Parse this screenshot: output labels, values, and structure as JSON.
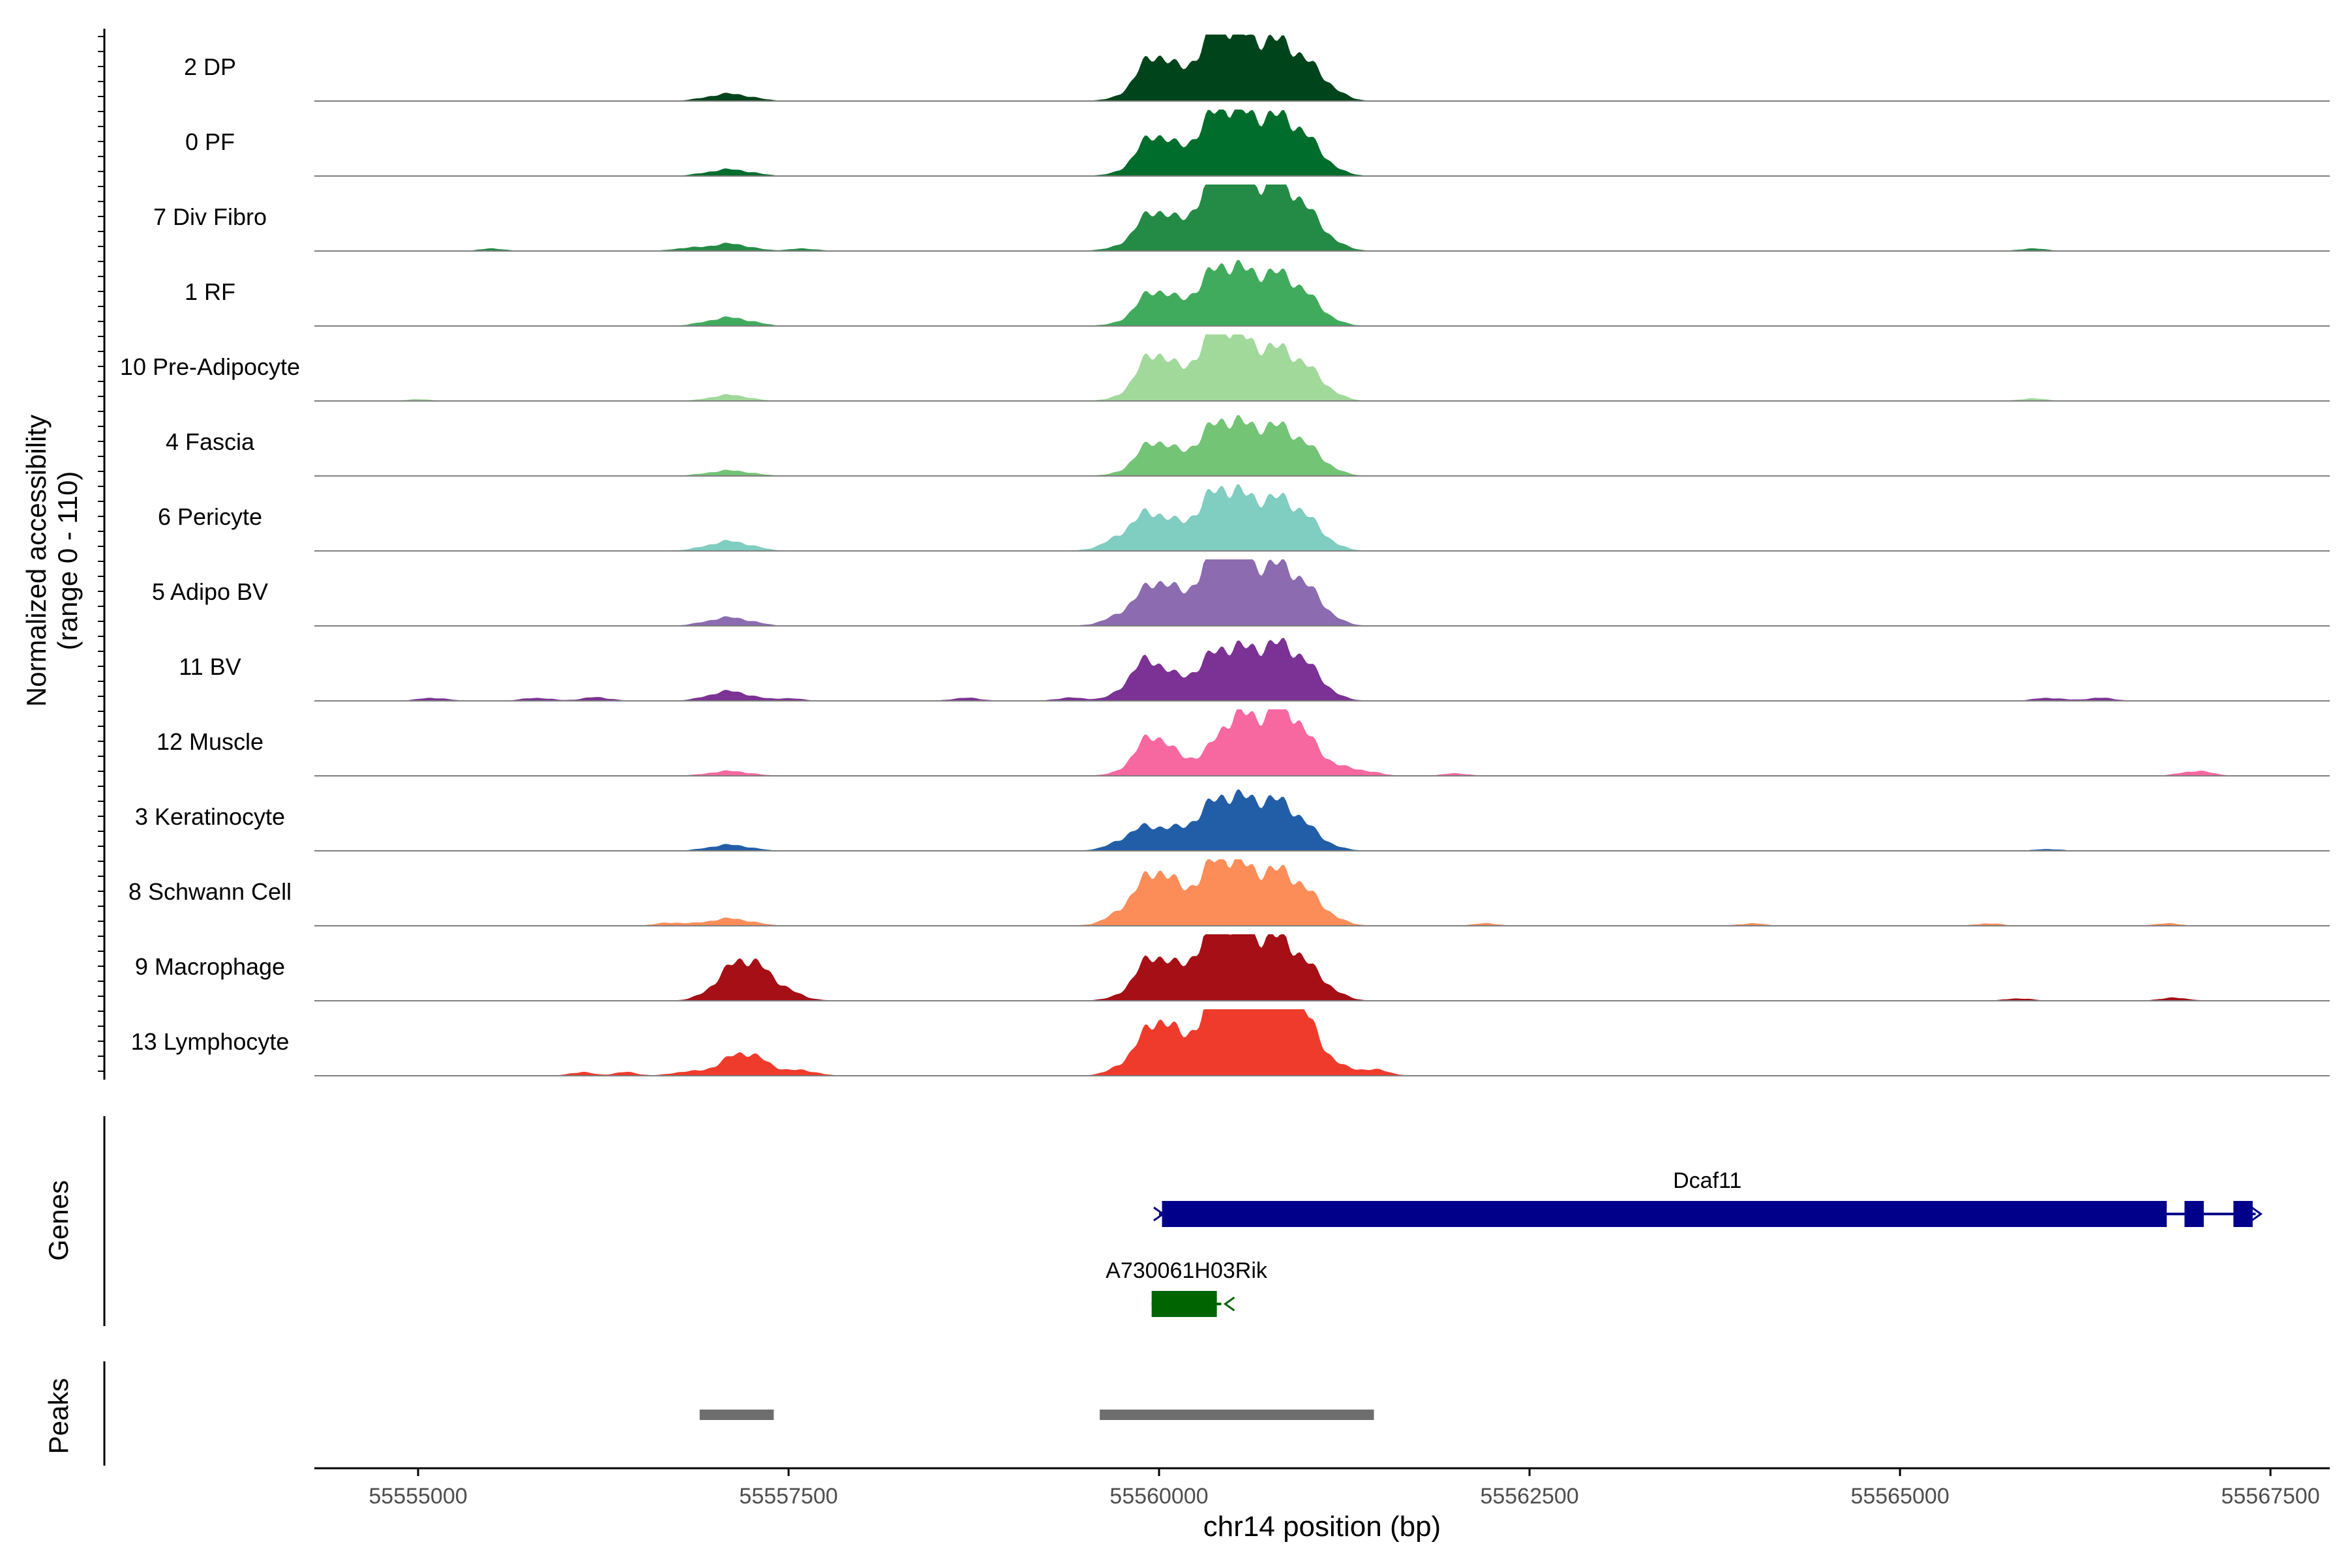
{
  "chart_data": {
    "type": "area",
    "title": "",
    "ylabel": "Normalized accessibility",
    "ylabel_range": "(range 0 - 110)",
    "yrange": [
      0,
      110
    ],
    "xlabel": "chr14 position (bp)",
    "xlim": [
      55554300,
      55567900
    ],
    "xticks": [
      55555000,
      55557500,
      55560000,
      55562500,
      55565000,
      55567500
    ],
    "xtick_labels": [
      "55555000",
      "55557500",
      "55560000",
      "55562500",
      "55565000",
      "55567500"
    ],
    "tracks": [
      {
        "name": "2 DP",
        "color": "#00441b",
        "peaks": [
          [
            55557100,
            12,
            150
          ],
          [
            55559960,
            55,
            110
          ],
          [
            55560200,
            32,
            250
          ],
          [
            55560420,
            80,
            140
          ],
          [
            55560720,
            64,
            190
          ],
          [
            55560880,
            38,
            180
          ],
          [
            55561020,
            14,
            120
          ],
          [
            55561150,
            6,
            100
          ]
        ]
      },
      {
        "name": "0 PF",
        "color": "#006d2c",
        "peaks": [
          [
            55557100,
            11,
            150
          ],
          [
            55559960,
            50,
            110
          ],
          [
            55560200,
            28,
            250
          ],
          [
            55560420,
            76,
            140
          ],
          [
            55560720,
            60,
            190
          ],
          [
            55560880,
            42,
            180
          ],
          [
            55561020,
            14,
            120
          ]
        ]
      },
      {
        "name": "7 Div Fibro",
        "color": "#238b45",
        "peaks": [
          [
            55555500,
            4,
            90
          ],
          [
            55556800,
            4,
            100
          ],
          [
            55557100,
            12,
            140
          ],
          [
            55557600,
            4,
            100
          ],
          [
            55559960,
            45,
            110
          ],
          [
            55560150,
            28,
            250
          ],
          [
            55560420,
            98,
            140
          ],
          [
            55560720,
            68,
            190
          ],
          [
            55560880,
            50,
            170
          ],
          [
            55561050,
            12,
            140
          ],
          [
            55565900,
            4,
            100
          ]
        ]
      },
      {
        "name": "1 RF",
        "color": "#41ab5d",
        "peaks": [
          [
            55557100,
            14,
            150
          ],
          [
            55559960,
            42,
            110
          ],
          [
            55560200,
            26,
            250
          ],
          [
            55560420,
            66,
            140
          ],
          [
            55560720,
            56,
            190
          ],
          [
            55560880,
            34,
            170
          ],
          [
            55561020,
            10,
            120
          ]
        ]
      },
      {
        "name": "10 Pre-Adipocyte",
        "color": "#a1d99b",
        "peaks": [
          [
            55555000,
            3,
            90
          ],
          [
            55557100,
            10,
            130
          ],
          [
            55559960,
            60,
            110
          ],
          [
            55560200,
            30,
            250
          ],
          [
            55560420,
            88,
            140
          ],
          [
            55560720,
            54,
            190
          ],
          [
            55560880,
            36,
            170
          ],
          [
            55561050,
            14,
            120
          ],
          [
            55565900,
            4,
            100
          ]
        ]
      },
      {
        "name": "4 Fascia",
        "color": "#74c476",
        "peaks": [
          [
            55557100,
            9,
            150
          ],
          [
            55559960,
            42,
            110
          ],
          [
            55560200,
            24,
            250
          ],
          [
            55560420,
            60,
            140
          ],
          [
            55560720,
            52,
            190
          ],
          [
            55560880,
            34,
            170
          ],
          [
            55561050,
            10,
            120
          ]
        ]
      },
      {
        "name": "6 Pericyte",
        "color": "#80cdc1",
        "peaks": [
          [
            55557100,
            16,
            150
          ],
          [
            55559800,
            22,
            140
          ],
          [
            55559960,
            34,
            110
          ],
          [
            55560200,
            30,
            250
          ],
          [
            55560420,
            68,
            140
          ],
          [
            55560720,
            52,
            190
          ],
          [
            55560880,
            38,
            170
          ],
          [
            55561030,
            12,
            120
          ]
        ]
      },
      {
        "name": "5 Adipo BV",
        "color": "#8c6bb1",
        "peaks": [
          [
            55557100,
            14,
            150
          ],
          [
            55559850,
            22,
            150
          ],
          [
            55560000,
            40,
            110
          ],
          [
            55560200,
            28,
            250
          ],
          [
            55560420,
            100,
            130
          ],
          [
            55560720,
            62,
            190
          ],
          [
            55560880,
            44,
            170
          ],
          [
            55561040,
            14,
            120
          ]
        ]
      },
      {
        "name": "11 BV",
        "color": "#7b3294",
        "peaks": [
          [
            55555100,
            5,
            100
          ],
          [
            55555800,
            5,
            100
          ],
          [
            55556200,
            6,
            100
          ],
          [
            55557100,
            16,
            140
          ],
          [
            55557500,
            4,
            100
          ],
          [
            55558700,
            5,
            100
          ],
          [
            55559400,
            5,
            100
          ],
          [
            55559920,
            52,
            120
          ],
          [
            55560150,
            24,
            250
          ],
          [
            55560420,
            56,
            140
          ],
          [
            55560720,
            58,
            190
          ],
          [
            55560880,
            40,
            170
          ],
          [
            55561020,
            14,
            120
          ],
          [
            55566000,
            5,
            100
          ],
          [
            55566350,
            5,
            100
          ]
        ]
      },
      {
        "name": "12 Muscle",
        "color": "#f768a1",
        "peaks": [
          [
            55557100,
            8,
            140
          ],
          [
            55559950,
            50,
            110
          ],
          [
            55560150,
            24,
            230
          ],
          [
            55560500,
            70,
            120
          ],
          [
            55560780,
            62,
            180
          ],
          [
            55560880,
            54,
            150
          ],
          [
            55561200,
            10,
            120
          ],
          [
            55561400,
            6,
            100
          ],
          [
            55562000,
            4,
            90
          ],
          [
            55567000,
            8,
            110
          ]
        ]
      },
      {
        "name": "3 Keratinocyte",
        "color": "#225ea8",
        "peaks": [
          [
            55557100,
            10,
            140
          ],
          [
            55559900,
            28,
            150
          ],
          [
            55560200,
            24,
            250
          ],
          [
            55560420,
            56,
            140
          ],
          [
            55560720,
            60,
            190
          ],
          [
            55560900,
            30,
            170
          ],
          [
            55566000,
            3,
            90
          ]
        ]
      },
      {
        "name": "8 Schwann Cell",
        "color": "#fc8d59",
        "peaks": [
          [
            55556700,
            5,
            100
          ],
          [
            55557100,
            12,
            150
          ],
          [
            55559850,
            30,
            140
          ],
          [
            55560000,
            52,
            110
          ],
          [
            55560200,
            30,
            250
          ],
          [
            55560420,
            78,
            140
          ],
          [
            55560720,
            54,
            190
          ],
          [
            55560880,
            40,
            170
          ],
          [
            55561050,
            12,
            140
          ],
          [
            55562200,
            4,
            90
          ],
          [
            55564000,
            4,
            90
          ],
          [
            55565600,
            4,
            90
          ],
          [
            55566800,
            4,
            90
          ]
        ]
      },
      {
        "name": "9 Macrophage",
        "color": "#a50f15",
        "peaks": [
          [
            55557180,
            62,
            150
          ],
          [
            55557400,
            18,
            150
          ],
          [
            55559950,
            50,
            110
          ],
          [
            55560200,
            38,
            250
          ],
          [
            55560420,
            86,
            140
          ],
          [
            55560720,
            64,
            190
          ],
          [
            55560880,
            46,
            170
          ],
          [
            55561100,
            10,
            120
          ],
          [
            55565800,
            4,
            90
          ],
          [
            55566850,
            5,
            100
          ]
        ]
      },
      {
        "name": "13 Lymphocyte",
        "color": "#ef3b2c",
        "peaks": [
          [
            55556100,
            6,
            80
          ],
          [
            55556400,
            6,
            80
          ],
          [
            55556800,
            6,
            100
          ],
          [
            55557200,
            38,
            150
          ],
          [
            55557600,
            8,
            100
          ],
          [
            55559850,
            20,
            130
          ],
          [
            55560000,
            62,
            110
          ],
          [
            55560250,
            32,
            250
          ],
          [
            55560420,
            90,
            140
          ],
          [
            55560700,
            98,
            180
          ],
          [
            55560880,
            104,
            140
          ],
          [
            55561150,
            16,
            120
          ],
          [
            55561450,
            10,
            100
          ]
        ]
      }
    ],
    "genes_label": "Genes",
    "genes": [
      {
        "name": "Dcaf11",
        "color": "#00008b",
        "start": 55560000,
        "end": 55567400,
        "strand": "+",
        "exons": [
          [
            55560020,
            55566800
          ],
          [
            55566920,
            55567050
          ],
          [
            55567250,
            55567380
          ]
        ]
      },
      {
        "name": "A730061H03Rik",
        "color": "#006400",
        "start": 55559950,
        "end": 55560420,
        "strand": "-",
        "exons": [
          [
            55559950,
            55560390
          ]
        ]
      }
    ],
    "peaks_label": "Peaks",
    "peak_regions": [
      [
        55556900,
        55557400
      ],
      [
        55559600,
        55561450
      ]
    ],
    "peak_color": "#6e6e6e"
  }
}
